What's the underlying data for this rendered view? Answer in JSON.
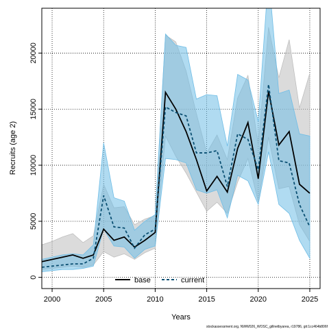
{
  "chart_data": {
    "type": "line",
    "xlabel": "Years",
    "ylabel": "Recruits (age 2)",
    "xlim": [
      1999,
      2026
    ],
    "ylim": [
      -1000,
      24000
    ],
    "x_ticks": [
      2000,
      2005,
      2010,
      2015,
      2020,
      2025
    ],
    "y_ticks": [
      0,
      5000,
      10000,
      15000,
      20000
    ],
    "grid": true,
    "legend_position": "bottom-center",
    "footnote": "stockassessment.org, NWW026_WOSC_gillnetbyarea, r19786, git:1cc464b806f",
    "series": [
      {
        "name": "base",
        "color": "#000000",
        "band_color": "#bebebe",
        "line_style": "solid",
        "x": [
          1999,
          2000,
          2001,
          2002,
          2003,
          2004,
          2005,
          2006,
          2007,
          2008,
          2009,
          2010,
          2011,
          2012,
          2013,
          2014,
          2015,
          2016,
          2017,
          2018,
          2019,
          2020,
          2021,
          2022,
          2023,
          2024,
          2025
        ],
        "values": [
          1400,
          1600,
          1800,
          2000,
          1700,
          2000,
          4300,
          3300,
          3600,
          2700,
          3300,
          4000,
          16500,
          15000,
          13000,
          10500,
          7700,
          9000,
          7600,
          11500,
          13800,
          8800,
          16600,
          11800,
          13000,
          8300,
          7500
        ],
        "upper": [
          2900,
          3200,
          3600,
          3900,
          3100,
          3700,
          8300,
          6200,
          6300,
          4700,
          5200,
          5500,
          21600,
          21000,
          18400,
          14600,
          11100,
          12700,
          10500,
          16000,
          18000,
          11800,
          22300,
          17800,
          21200,
          15100,
          18200
        ],
        "lower": [
          700,
          800,
          900,
          1000,
          900,
          1100,
          2300,
          1800,
          2100,
          1600,
          2200,
          2600,
          12600,
          10800,
          9300,
          7600,
          5900,
          6700,
          5700,
          8500,
          10600,
          6700,
          12500,
          7900,
          8100,
          4700,
          3200
        ]
      },
      {
        "name": "current",
        "color": "#0a4f72",
        "band_color": "#6fbde6",
        "line_style": "dashed",
        "x": [
          1999,
          2000,
          2001,
          2002,
          2003,
          2004,
          2005,
          2006,
          2007,
          2008,
          2009,
          2010,
          2011,
          2012,
          2013,
          2014,
          2015,
          2016,
          2017,
          2018,
          2019,
          2020,
          2021,
          2022,
          2023,
          2024,
          2025
        ],
        "values": [
          900,
          1000,
          1100,
          1200,
          1200,
          1700,
          7300,
          4500,
          4400,
          2600,
          3800,
          4300,
          15200,
          14700,
          14400,
          11100,
          11100,
          11300,
          8100,
          12800,
          12300,
          9600,
          17200,
          10400,
          10200,
          6500,
          4500
        ],
        "upper": [
          1600,
          1800,
          2000,
          2100,
          2000,
          2900,
          12000,
          7100,
          6800,
          4200,
          5000,
          5600,
          21700,
          20700,
          20500,
          15900,
          16300,
          16200,
          11700,
          18100,
          17600,
          13900,
          27000,
          16400,
          16700,
          12800,
          12600
        ],
        "lower": [
          500,
          600,
          700,
          700,
          800,
          1000,
          4300,
          2800,
          2700,
          1700,
          2500,
          2800,
          10600,
          10500,
          10200,
          7800,
          7500,
          7800,
          5300,
          9100,
          8600,
          6500,
          11200,
          6500,
          5700,
          3300,
          1700
        ]
      }
    ]
  }
}
